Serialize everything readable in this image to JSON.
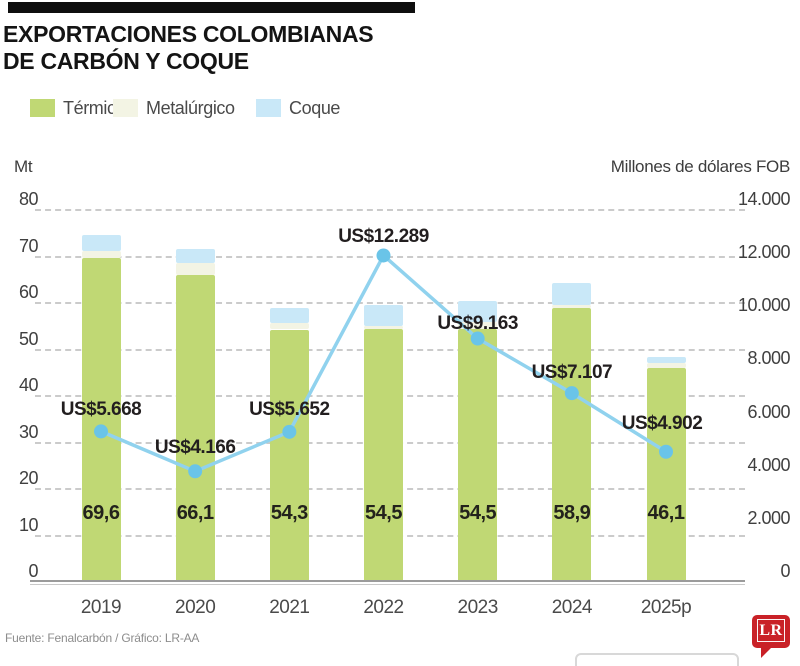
{
  "title": {
    "line1": "EXPORTACIONES COLOMBIANAS",
    "line2": "DE CARBÓN Y COQUE"
  },
  "footer": {
    "source": "Fuente: Fenalcarbón / Gráfico: LR-AA",
    "logo_text": "LR"
  },
  "chart_data": {
    "type": "bar+line",
    "title": "Exportaciones colombianas de carbón y coque",
    "stacked_bars": true,
    "grid": "horizontal-dashed",
    "legend_position": "top-left",
    "categories": [
      "2019",
      "2020",
      "2021",
      "2022",
      "2023",
      "2024",
      "2025p"
    ],
    "bar_series": [
      {
        "name": "Térmico",
        "color": "#c0d874",
        "values": [
          69.6,
          66.1,
          54.3,
          54.5,
          54.5,
          58.9,
          46.1
        ],
        "labels": [
          "69,6",
          "66,1",
          "54,3",
          "54,5",
          "54,5",
          "58,9",
          "46,1"
        ]
      },
      {
        "name": "Metalúrgico",
        "color": "#f3f4e4",
        "values": [
          1.5,
          2.5,
          1.3,
          0.5,
          1.5,
          0.7,
          1.0
        ]
      },
      {
        "name": "Coque",
        "color": "#c9e8f8",
        "values": [
          3.5,
          3.0,
          3.3,
          4.5,
          4.5,
          4.8,
          1.2
        ]
      }
    ],
    "line_series": {
      "name": "Millones de dólares FOB",
      "color": "#90d2ee",
      "marker_color": "#6ac4e8",
      "values": [
        5668,
        4166,
        5652,
        12289,
        9163,
        7107,
        4902
      ],
      "labels": [
        "US$5.668",
        "US$4.166",
        "US$5.652",
        "US$12.289",
        "US$9.163",
        "US$7.107",
        "US$4.902"
      ]
    },
    "left_axis": {
      "label": "Mt",
      "min": 0,
      "max": 80,
      "ticks": [
        0,
        10,
        20,
        30,
        40,
        50,
        60,
        70,
        80
      ]
    },
    "right_axis": {
      "label": "Millones de dólares FOB",
      "min": 0,
      "max": 14000,
      "ticks": [
        0,
        2000,
        4000,
        6000,
        8000,
        10000,
        12000,
        14000
      ],
      "tick_labels": [
        "0",
        "2.000",
        "4.000",
        "6.000",
        "8.000",
        "10.000",
        "12.000",
        "14.000"
      ]
    },
    "grid_color": "#cbcbcb",
    "baseline_color": "#9b9b9b"
  }
}
